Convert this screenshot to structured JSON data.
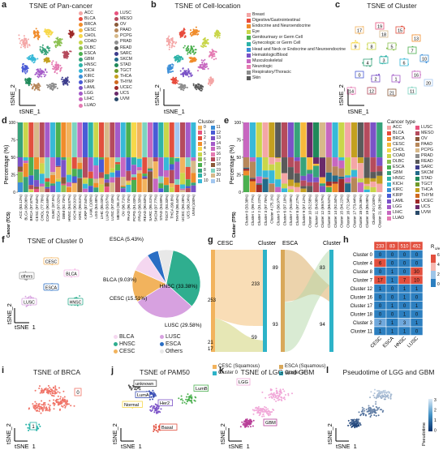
{
  "panels": {
    "a": {
      "letter": "a",
      "title": "TSNE of Pan-cancer",
      "xlabel": "tSNE_1",
      "ylabel": "tSNE_2",
      "legend": [
        "ACC",
        "BLCA",
        "BRCA",
        "CESC",
        "CHOL",
        "COAD",
        "DLBC",
        "ESCA",
        "GBM",
        "HNSC",
        "KICH",
        "KIRC",
        "KIRP",
        "LAML",
        "LGG",
        "LIHC",
        "LUAD",
        "LUSC",
        "MESO",
        "OV",
        "PAAD",
        "PCPG",
        "PRAD",
        "READ",
        "SARC",
        "SKCM",
        "STAD",
        "TGCT",
        "THCA",
        "THYM",
        "UCEC",
        "UCS",
        "UVM"
      ]
    },
    "b": {
      "letter": "b",
      "title": "TSNE of Cell-location",
      "xlabel": "tSNE_1",
      "ylabel": "tSNE_2",
      "legend": [
        "Breast",
        "Digestive/Gastrointestinal",
        "Endocrine and Neuroendocrine",
        "Eye",
        "Genitourinary or Germ Cell",
        "Gynecologic or Germ Cell",
        "Head and Neck or Endocrine and Neuroendocrine",
        "Hematologic/Blood",
        "Musculoskeletal",
        "Neurologic",
        "Respiratory/Thoracic",
        "Skin"
      ]
    },
    "c": {
      "letter": "c",
      "title": "TSNE of Cluster",
      "xlabel": "tSNE_1",
      "ylabel": "tSNE_2",
      "labels": [
        "17",
        "19",
        "15",
        "13",
        "9",
        "8",
        "5",
        "7",
        "4",
        "3",
        "6",
        "10",
        "0",
        "2",
        "1",
        "16",
        "14",
        "12",
        "21",
        "11",
        "18",
        "20"
      ]
    },
    "d": {
      "letter": "d",
      "ylabel": "Percentage (%)",
      "legend_title": "Cluster",
      "legend": [
        "0",
        "1",
        "2",
        "3",
        "4",
        "5",
        "6",
        "7",
        "8",
        "9",
        "10",
        "11",
        "12",
        "13",
        "14",
        "15",
        "16",
        "17",
        "18",
        "19",
        "20",
        "21"
      ],
      "axis_title": "Cancer (TCS)",
      "categories": [
        "ACC (83.12%)",
        "BLCA (98.06%)",
        "BRCA (97.87%)",
        "CESC (97.64%)",
        "CHOL (77.78%)",
        "COAD (90.69%)",
        "DLBC (87.5%)",
        "ESCA (97.02%)",
        "GBM (92.73%)",
        "HNSC (94.87%)",
        "KICH (90.91%)",
        "KIRC (99.81%)",
        "KIRP (87.54%)",
        "LAML (100%)",
        "LGG (84.48%)",
        "LIHC (85.03%)",
        "LUAD (93.67%)",
        "LUSC (97.43%)",
        "MESO (93.1%)",
        "OV (96.71%)",
        "PAAD (96.74%)",
        "PCPG (91.03%)",
        "PRAD (98.33%)",
        "READ (90.63%)",
        "SARC (95.41%)",
        "SKCM (97.77%)",
        "STAD (94.89%)",
        "TGCT (93.33%)",
        "THCA (99.8%)",
        "THYM (98.44%)",
        "UCEC (90.28%)",
        "UCS (98.24%)",
        "UVM (100%)"
      ]
    },
    "e": {
      "letter": "e",
      "ylabel": "Percentage (%)",
      "legend_title": "Cancer type",
      "legend": [
        "ACC",
        "BLCA",
        "BRCA",
        "CESC",
        "CHOL",
        "COAD",
        "DLBC",
        "ESCA",
        "GBM",
        "HNSC",
        "KICH",
        "KIRC",
        "KIRP",
        "LAML",
        "LGG",
        "LIHC",
        "LUAD",
        "LUSC",
        "MESO",
        "OV",
        "PAAD",
        "PCPG",
        "PRAD",
        "READ",
        "SARC",
        "SKCM",
        "STAD",
        "TGCT",
        "THCA",
        "THYM",
        "UCEC",
        "UCS",
        "UVM"
      ],
      "axis_title": "Cluster (TPS)",
      "categories": [
        "Cluster 0 (33.38%)",
        "Cluster 1 (99.77%)",
        "Cluster 2 (31.22%)",
        "Cluster 3 (97.75%)",
        "Cluster 4 (75.1%)",
        "Cluster 5 (98.97%)",
        "Cluster 6 (97.19%)",
        "Cluster 7 (94.09%)",
        "Cluster 8 (97.27%)",
        "Cluster 9 (57.12%)",
        "Cluster 10 (52.58%)",
        "Cluster 11 (64.08%)",
        "Cluster 12 (69.57%)",
        "Cluster 13 (66.52%)",
        "Cluster 14 (92.34%)",
        "Cluster 15 (94.22%)",
        "Cluster 16 (72.34%)",
        "Cluster 17 (73.44%)",
        "Cluster 18 (35.36%)",
        "Cluster 19 (85.08%)",
        "Cluster 20 (100%)",
        "Cluster 21 (86.28%)"
      ]
    },
    "f": {
      "letter": "f",
      "title": "TSNE of Cluster 0",
      "xlabel": "tSNE_1",
      "ylabel": "tSNE_2",
      "cluster_labels": [
        "CESC",
        "BLCA",
        "others",
        "ESCA",
        "LUSC",
        "HNSC"
      ],
      "legend": [
        "BLCA",
        "HNSC",
        "CESC",
        "LUSC",
        "ESCA",
        "Others"
      ]
    },
    "g": {
      "letter": "g",
      "left_label": "CESC",
      "mid_label": "Cluster",
      "right_label": "ESCA",
      "right_mid_label": "Cluster",
      "legend": [
        "CESC (Squamous)",
        "Cluster 0",
        "ESCA (Squamous)",
        "Cluster 0"
      ]
    },
    "h": {
      "letter": "h",
      "colorbar_title": "R",
      "colorbar_sub": "o/e",
      "colorbar_ticks": [
        "6",
        "4",
        "2",
        "0"
      ],
      "columns": [
        "CESC",
        "ESCA",
        "HNSC",
        "LUSC"
      ],
      "rows": [
        "Cluster 0",
        "Cluster 4",
        "Cluster 8",
        "Cluster 7",
        "Cluster 12",
        "Cluster 16",
        "Cluster 17",
        "Cluster 18",
        "Cluster 3",
        "Cluster 11"
      ]
    },
    "i": {
      "letter": "i",
      "title": "TSNE of BRCA",
      "xlabel": "tSNE_1",
      "ylabel": "tSNE_2",
      "labels": [
        "0",
        "1"
      ]
    },
    "j": {
      "letter": "j",
      "title": "TSNE of PAM50",
      "xlabel": "tSNE_1",
      "ylabel": "tSNE_2",
      "labels": [
        "unknown",
        "LumA",
        "Normal",
        "Her2",
        "LumB",
        "Basal"
      ]
    },
    "k": {
      "letter": "k",
      "title": "TSNE of LGG and GBM",
      "xlabel": "tSNE_1",
      "ylabel": "tSNE_2",
      "labels": [
        "LGG",
        "GBM"
      ]
    },
    "l": {
      "letter": "l",
      "title": "Pseudotime of LGG and GBM",
      "xlabel": "tSNE_1",
      "ylabel": "tSNE_2",
      "colorbar_title": "Pseudotime",
      "colorbar_ticks": [
        "3",
        "2",
        "1",
        "0"
      ]
    }
  },
  "chart_data": [
    {
      "type": "pie",
      "panel": "f",
      "slices": [
        {
          "label": "HNSC (33.38%)",
          "value": 33.38,
          "color": "#2fae8f"
        },
        {
          "label": "LUSC (29.58%)",
          "value": 29.58,
          "color": "#d7a1e0"
        },
        {
          "label": "CESC (15.51%)",
          "value": 15.51,
          "color": "#f2b35d"
        },
        {
          "label": "BLCA (9.03%)",
          "value": 9.03,
          "color": "#f5d7f0"
        },
        {
          "label": "ESCA (5.43%)",
          "value": 5.43,
          "color": "#2a6ec4"
        },
        {
          "label": "",
          "value": 7.07,
          "color": "#e8e8e8"
        }
      ]
    },
    {
      "type": "sankey",
      "panel": "g",
      "left_values": [
        "253",
        "21",
        "17"
      ],
      "left_mid_values": [
        "233",
        "59"
      ],
      "right_values": [
        "89",
        "93"
      ],
      "right_mid_values": [
        "83",
        "94"
      ]
    },
    {
      "type": "heatmap",
      "panel": "h",
      "top_counts": [
        233,
        83,
        510,
        452
      ],
      "values": [
        [
          0,
          0,
          0,
          0
        ],
        [
          6,
          0,
          0,
          0
        ],
        [
          0,
          1,
          0,
          30
        ],
        [
          17,
          1,
          7,
          10
        ],
        [
          1,
          0,
          1,
          1
        ],
        [
          0,
          0,
          1,
          0
        ],
        [
          0,
          1,
          0,
          1
        ],
        [
          0,
          0,
          1,
          0
        ],
        [
          2,
          1,
          3,
          1
        ],
        [
          1,
          1,
          1,
          0
        ]
      ]
    }
  ]
}
